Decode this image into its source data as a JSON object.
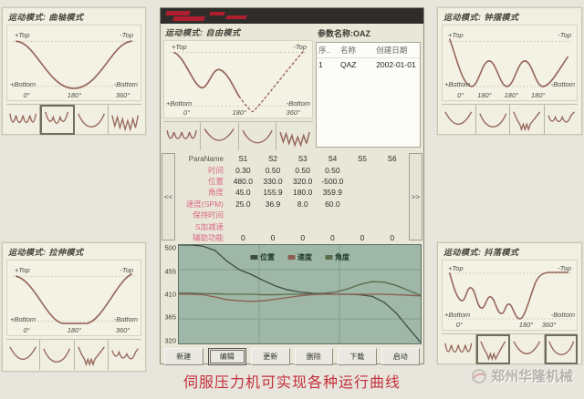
{
  "axis": {
    "plus_top": "+Top",
    "minus_top": "-Top",
    "plus_bottom": "+Bottom",
    "minus_bottom": "-Bottom",
    "deg0": "0°",
    "deg180": "180°",
    "deg360": "360°"
  },
  "panels": {
    "crank": {
      "title": "运动模式: 曲轴模式",
      "ticks": [
        "0°",
        "180°",
        "360°"
      ]
    },
    "pendulum": {
      "title": "运动模式: 钟摆模式",
      "ticks": [
        "0°",
        "180°",
        "180°",
        "180°"
      ]
    },
    "draw": {
      "title": "运动模式: 拉伸模式",
      "ticks": [
        "0°",
        "180°",
        "360°"
      ]
    },
    "shake": {
      "title": "运动模式: 抖落模式",
      "ticks": [
        "0°",
        "180°",
        "360°"
      ]
    }
  },
  "window": {
    "mode_title": "运动模式: 自由模式",
    "params": {
      "title": "参数名称:OAZ",
      "columns": [
        "序..",
        "名称",
        "创建日期"
      ],
      "row": [
        "1",
        "QAZ",
        "2002-01-01"
      ]
    },
    "grid": {
      "header": [
        "ParaName",
        "S1",
        "S2",
        "S3",
        "S4",
        "S5",
        "S6"
      ],
      "rows": [
        {
          "label": "时间",
          "values": [
            "0.30",
            "0.50",
            "0.50",
            "0.50",
            "",
            ""
          ]
        },
        {
          "label": "位置",
          "values": [
            "480.0",
            "330.0",
            "320.0",
            "-500.0",
            "",
            ""
          ]
        },
        {
          "label": "角度",
          "values": [
            "45.0",
            "155.9",
            "180.0",
            "359.9",
            "",
            ""
          ]
        },
        {
          "label": "速度(SPM)",
          "values": [
            "25.0",
            "36.9",
            "8.0",
            "60.0",
            "",
            ""
          ]
        },
        {
          "label": "保持时间",
          "values": [
            "",
            "",
            "",
            "",
            "",
            ""
          ]
        },
        {
          "label": "S加减速",
          "values": [
            "",
            "",
            "",
            "",
            "",
            ""
          ]
        },
        {
          "label": "辅助功能",
          "values": [
            "0",
            "0",
            "0",
            "0",
            "0",
            "0"
          ]
        }
      ],
      "scroll_left": "<<",
      "scroll_right": ">>"
    },
    "buttons": [
      "新建",
      "编辑",
      "更新",
      "删除",
      "下载",
      "启动"
    ]
  },
  "chart_data": {
    "type": "line",
    "title": "",
    "xlabel": "",
    "ylabel": "",
    "ylim": [
      320,
      500
    ],
    "yticks": [
      "500",
      "455",
      "410",
      "365",
      "320"
    ],
    "grid": true,
    "legend_position": "top-center",
    "x": [
      0,
      5,
      10,
      15,
      20,
      25,
      30,
      35,
      40,
      45,
      50,
      55,
      60,
      65,
      70,
      75,
      80,
      85,
      90,
      95,
      100
    ],
    "series": [
      {
        "name": "位置",
        "color": "#3f4d44",
        "values": [
          500,
          500,
          498,
          490,
          470,
          455,
          446,
          435,
          425,
          418,
          414,
          412,
          411,
          410,
          410,
          409,
          406,
          395,
          375,
          348,
          322
        ]
      },
      {
        "name": "速度",
        "color": "#8d5f54",
        "values": [
          410,
          410,
          409,
          405,
          400,
          398,
          397,
          398,
          401,
          404,
          407,
          409,
          410,
          410,
          410,
          410,
          410,
          410,
          409,
          408,
          407
        ]
      },
      {
        "name": "角度",
        "color": "#5c6b4e",
        "values": [
          412,
          412,
          411,
          411,
          410,
          410,
          410,
          409,
          409,
          410,
          410,
          411,
          412,
          414,
          420,
          428,
          433,
          432,
          426,
          417,
          408
        ]
      }
    ]
  },
  "caption": "伺服压力机可实现各种运行曲线",
  "watermark": "郑州华隆机械"
}
